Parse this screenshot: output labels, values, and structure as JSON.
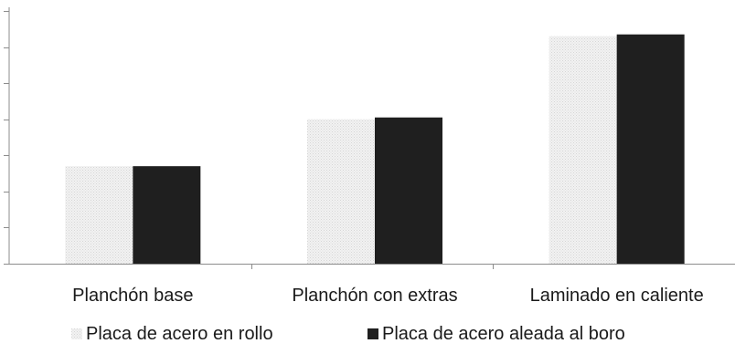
{
  "chart_data": {
    "type": "bar",
    "title": "",
    "xlabel": "",
    "ylabel": "",
    "categories": [
      "Planchón base",
      "Planchón con extras",
      "Laminado en caliente"
    ],
    "series": [
      {
        "name": "Placa de acero en rollo",
        "values": [
          2.7,
          4.0,
          6.3
        ],
        "color": "#ececec",
        "pattern": "light-dotted"
      },
      {
        "name": "Placa de acero aleada al boro",
        "values": [
          2.7,
          4.05,
          6.35
        ],
        "color": "#1f1f1f",
        "pattern": "solid"
      }
    ],
    "ylim": [
      0,
      7
    ],
    "y_tick_count": 8,
    "y_tick_labels_visible": false,
    "grid": false,
    "legend_position": "bottom"
  }
}
